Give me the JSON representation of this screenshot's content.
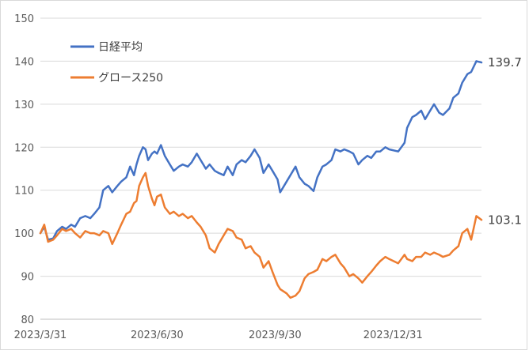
{
  "chart_data": {
    "type": "line",
    "title": "",
    "xlabel": "",
    "ylabel": "",
    "ylim": [
      80,
      150
    ],
    "y_ticks": [
      "80",
      "90",
      "100",
      "110",
      "120",
      "130",
      "140",
      "150"
    ],
    "x_tick_labels": [
      "2023/3/31",
      "2023/6/30",
      "2023/9/30",
      "2023/12/31"
    ],
    "x_ticks": [
      "2023-03-31",
      "2023-06-30",
      "2023-09-30",
      "2023-12-31"
    ],
    "x_range": [
      "2023-03-31",
      "2024-03-09"
    ],
    "grid": "horizontal",
    "legend_position": "upper-left",
    "series": [
      {
        "name": "日経平均",
        "color": "#4472c4",
        "end_label": "139.7",
        "points": [
          [
            "2023-03-31",
            100
          ],
          [
            "2023-04-03",
            101.5
          ],
          [
            "2023-04-06",
            98.5
          ],
          [
            "2023-04-10",
            98.8
          ],
          [
            "2023-04-13",
            100.5
          ],
          [
            "2023-04-17",
            101.5
          ],
          [
            "2023-04-20",
            101
          ],
          [
            "2023-04-24",
            102
          ],
          [
            "2023-04-27",
            101.5
          ],
          [
            "2023-05-01",
            103.5
          ],
          [
            "2023-05-05",
            104
          ],
          [
            "2023-05-09",
            103.5
          ],
          [
            "2023-05-12",
            104.5
          ],
          [
            "2023-05-16",
            106
          ],
          [
            "2023-05-19",
            110
          ],
          [
            "2023-05-23",
            111
          ],
          [
            "2023-05-26",
            109.5
          ],
          [
            "2023-05-30",
            111
          ],
          [
            "2023-06-02",
            112
          ],
          [
            "2023-06-06",
            113
          ],
          [
            "2023-06-09",
            115.5
          ],
          [
            "2023-06-12",
            113.5
          ],
          [
            "2023-06-14",
            116
          ],
          [
            "2023-06-16",
            118
          ],
          [
            "2023-06-19",
            120
          ],
          [
            "2023-06-21",
            119.5
          ],
          [
            "2023-06-23",
            117
          ],
          [
            "2023-06-26",
            118.5
          ],
          [
            "2023-06-28",
            119
          ],
          [
            "2023-06-30",
            118.5
          ],
          [
            "2023-07-03",
            120.5
          ],
          [
            "2023-07-06",
            118
          ],
          [
            "2023-07-10",
            116
          ],
          [
            "2023-07-13",
            114.5
          ],
          [
            "2023-07-17",
            115.5
          ],
          [
            "2023-07-20",
            116
          ],
          [
            "2023-07-24",
            115.5
          ],
          [
            "2023-07-27",
            116.5
          ],
          [
            "2023-07-31",
            118.5
          ],
          [
            "2023-08-03",
            117
          ],
          [
            "2023-08-07",
            115
          ],
          [
            "2023-08-10",
            116
          ],
          [
            "2023-08-14",
            114.5
          ],
          [
            "2023-08-17",
            114
          ],
          [
            "2023-08-21",
            113.5
          ],
          [
            "2023-08-24",
            115.5
          ],
          [
            "2023-08-28",
            113.5
          ],
          [
            "2023-08-31",
            116
          ],
          [
            "2023-09-04",
            117
          ],
          [
            "2023-09-07",
            116.5
          ],
          [
            "2023-09-11",
            118
          ],
          [
            "2023-09-14",
            119.5
          ],
          [
            "2023-09-18",
            117.5
          ],
          [
            "2023-09-21",
            114
          ],
          [
            "2023-09-25",
            116
          ],
          [
            "2023-09-28",
            114.5
          ],
          [
            "2023-10-02",
            112.5
          ],
          [
            "2023-10-04",
            109.5
          ],
          [
            "2023-10-09",
            112
          ],
          [
            "2023-10-12",
            113.5
          ],
          [
            "2023-10-16",
            115.5
          ],
          [
            "2023-10-19",
            113
          ],
          [
            "2023-10-23",
            111.5
          ],
          [
            "2023-10-26",
            111
          ],
          [
            "2023-10-30",
            109.8
          ],
          [
            "2023-11-02",
            113
          ],
          [
            "2023-11-06",
            115.5
          ],
          [
            "2023-11-09",
            116
          ],
          [
            "2023-11-13",
            117
          ],
          [
            "2023-11-16",
            119.5
          ],
          [
            "2023-11-20",
            119
          ],
          [
            "2023-11-23",
            119.5
          ],
          [
            "2023-11-27",
            119
          ],
          [
            "2023-11-30",
            118.5
          ],
          [
            "2023-12-04",
            116
          ],
          [
            "2023-12-07",
            117
          ],
          [
            "2023-12-11",
            118
          ],
          [
            "2023-12-14",
            117.5
          ],
          [
            "2023-12-18",
            119
          ],
          [
            "2023-12-21",
            119
          ],
          [
            "2023-12-25",
            120
          ],
          [
            "2023-12-28",
            119.5
          ],
          [
            "2024-01-04",
            119
          ],
          [
            "2024-01-09",
            121
          ],
          [
            "2024-01-11",
            124.5
          ],
          [
            "2024-01-15",
            127
          ],
          [
            "2024-01-18",
            127.5
          ],
          [
            "2024-01-22",
            128.5
          ],
          [
            "2024-01-25",
            126.5
          ],
          [
            "2024-01-29",
            128.5
          ],
          [
            "2024-02-01",
            130
          ],
          [
            "2024-02-05",
            128
          ],
          [
            "2024-02-08",
            127.5
          ],
          [
            "2024-02-13",
            129
          ],
          [
            "2024-02-16",
            131.5
          ],
          [
            "2024-02-20",
            132.5
          ],
          [
            "2024-02-23",
            135
          ],
          [
            "2024-02-27",
            137
          ],
          [
            "2024-03-01",
            137.5
          ],
          [
            "2024-03-05",
            140
          ],
          [
            "2024-03-09",
            139.7
          ]
        ]
      },
      {
        "name": "グロース250",
        "color": "#ed7d31",
        "end_label": "103.1",
        "points": [
          [
            "2023-03-31",
            100
          ],
          [
            "2023-04-03",
            102
          ],
          [
            "2023-04-06",
            98
          ],
          [
            "2023-04-10",
            98.5
          ],
          [
            "2023-04-13",
            99.5
          ],
          [
            "2023-04-17",
            101
          ],
          [
            "2023-04-20",
            100.5
          ],
          [
            "2023-04-24",
            101
          ],
          [
            "2023-04-27",
            100
          ],
          [
            "2023-05-01",
            99
          ],
          [
            "2023-05-05",
            100.5
          ],
          [
            "2023-05-09",
            100
          ],
          [
            "2023-05-12",
            100
          ],
          [
            "2023-05-16",
            99.5
          ],
          [
            "2023-05-19",
            100.5
          ],
          [
            "2023-05-23",
            100
          ],
          [
            "2023-05-26",
            97.5
          ],
          [
            "2023-05-30",
            100
          ],
          [
            "2023-06-02",
            102
          ],
          [
            "2023-06-06",
            104.5
          ],
          [
            "2023-06-09",
            105
          ],
          [
            "2023-06-12",
            107
          ],
          [
            "2023-06-14",
            107.5
          ],
          [
            "2023-06-16",
            111
          ],
          [
            "2023-06-19",
            113
          ],
          [
            "2023-06-21",
            114
          ],
          [
            "2023-06-23",
            111
          ],
          [
            "2023-06-26",
            108
          ],
          [
            "2023-06-28",
            106.5
          ],
          [
            "2023-06-30",
            108.5
          ],
          [
            "2023-07-03",
            109
          ],
          [
            "2023-07-06",
            106
          ],
          [
            "2023-07-10",
            104.5
          ],
          [
            "2023-07-13",
            105
          ],
          [
            "2023-07-17",
            104
          ],
          [
            "2023-07-20",
            104.5
          ],
          [
            "2023-07-24",
            103.5
          ],
          [
            "2023-07-27",
            104
          ],
          [
            "2023-07-31",
            102.5
          ],
          [
            "2023-08-03",
            101.5
          ],
          [
            "2023-08-07",
            99.5
          ],
          [
            "2023-08-10",
            96.5
          ],
          [
            "2023-08-14",
            95.5
          ],
          [
            "2023-08-17",
            97.5
          ],
          [
            "2023-08-21",
            99.5
          ],
          [
            "2023-08-24",
            101
          ],
          [
            "2023-08-28",
            100.5
          ],
          [
            "2023-08-31",
            99
          ],
          [
            "2023-09-04",
            98.5
          ],
          [
            "2023-09-07",
            96.5
          ],
          [
            "2023-09-11",
            97
          ],
          [
            "2023-09-14",
            95.5
          ],
          [
            "2023-09-18",
            94.5
          ],
          [
            "2023-09-21",
            92
          ],
          [
            "2023-09-25",
            93.5
          ],
          [
            "2023-09-28",
            91
          ],
          [
            "2023-10-02",
            88
          ],
          [
            "2023-10-04",
            87
          ],
          [
            "2023-10-09",
            86
          ],
          [
            "2023-10-12",
            85
          ],
          [
            "2023-10-16",
            85.5
          ],
          [
            "2023-10-19",
            86.5
          ],
          [
            "2023-10-23",
            89.5
          ],
          [
            "2023-10-26",
            90.5
          ],
          [
            "2023-10-30",
            91
          ],
          [
            "2023-11-02",
            91.5
          ],
          [
            "2023-11-06",
            94
          ],
          [
            "2023-11-09",
            93.5
          ],
          [
            "2023-11-13",
            94.5
          ],
          [
            "2023-11-16",
            95
          ],
          [
            "2023-11-20",
            93
          ],
          [
            "2023-11-23",
            92
          ],
          [
            "2023-11-27",
            90
          ],
          [
            "2023-11-30",
            90.5
          ],
          [
            "2023-12-04",
            89.5
          ],
          [
            "2023-12-07",
            88.5
          ],
          [
            "2023-12-11",
            90
          ],
          [
            "2023-12-14",
            91
          ],
          [
            "2023-12-18",
            92.5
          ],
          [
            "2023-12-21",
            93.5
          ],
          [
            "2023-12-25",
            94.5
          ],
          [
            "2023-12-28",
            94
          ],
          [
            "2024-01-04",
            93
          ],
          [
            "2024-01-09",
            95
          ],
          [
            "2024-01-11",
            94
          ],
          [
            "2024-01-15",
            93.5
          ],
          [
            "2024-01-18",
            94.5
          ],
          [
            "2024-01-22",
            94.5
          ],
          [
            "2024-01-25",
            95.5
          ],
          [
            "2024-01-29",
            95
          ],
          [
            "2024-02-01",
            95.5
          ],
          [
            "2024-02-05",
            95
          ],
          [
            "2024-02-08",
            94.5
          ],
          [
            "2024-02-13",
            95
          ],
          [
            "2024-02-16",
            96
          ],
          [
            "2024-02-20",
            97
          ],
          [
            "2024-02-23",
            100
          ],
          [
            "2024-02-27",
            101
          ],
          [
            "2024-03-01",
            98.5
          ],
          [
            "2024-03-05",
            104
          ],
          [
            "2024-03-09",
            103.1
          ]
        ]
      }
    ]
  }
}
